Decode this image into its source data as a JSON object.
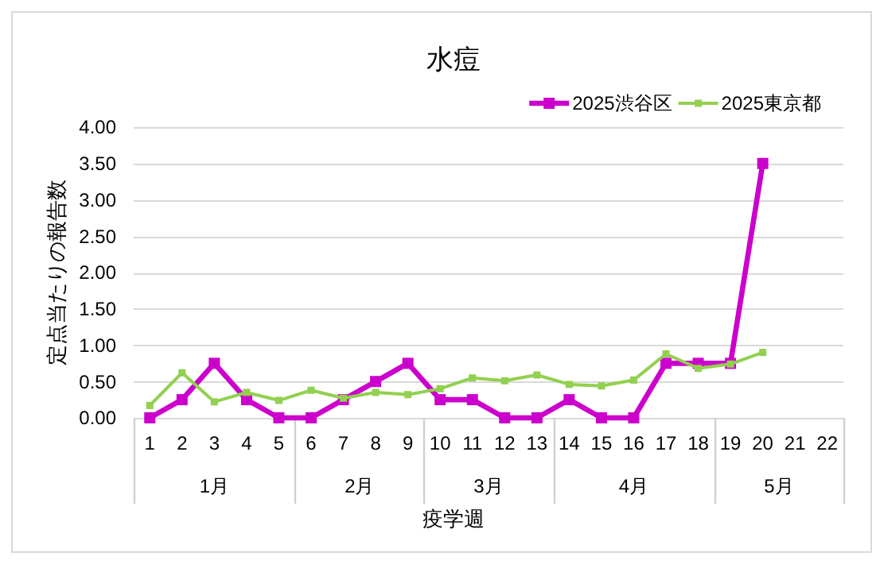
{
  "chart_data": {
    "type": "line",
    "title": "水痘",
    "xlabel": "疫学週",
    "ylabel": "定点当たりの報告数",
    "x": [
      1,
      2,
      3,
      4,
      5,
      6,
      7,
      8,
      9,
      10,
      11,
      12,
      13,
      14,
      15,
      16,
      17,
      18,
      19,
      20
    ],
    "xlim": [
      0.5,
      22.5
    ],
    "xticks": [
      {
        "value": 0.5,
        "label": null
      },
      1,
      2,
      3,
      4,
      5,
      {
        "value": 5.5,
        "label": null
      },
      6,
      7,
      8,
      9,
      {
        "value": 9.5,
        "label": null
      },
      10,
      11,
      12,
      13,
      {
        "value": 13.5,
        "label": null
      },
      14,
      15,
      16,
      17,
      18,
      {
        "value": 18.5,
        "label": null
      },
      19,
      20,
      21,
      22,
      {
        "value": 22.5,
        "label": null
      }
    ],
    "ylim": [
      0,
      4
    ],
    "yticks": [
      {
        "value": 0,
        "label": "0.00"
      },
      {
        "value": 0.5,
        "label": "0.50"
      },
      {
        "value": 1,
        "label": "1.00"
      },
      {
        "value": 1.5,
        "label": "1.50"
      },
      {
        "value": 2,
        "label": "2.00"
      },
      {
        "value": 2.5,
        "label": "2.50"
      },
      {
        "value": 3,
        "label": "3.00"
      },
      {
        "value": 3.5,
        "label": "3.50"
      },
      {
        "value": 4,
        "label": "4.00"
      }
    ],
    "series": [
      {
        "name": "2025渋谷区",
        "color": "#cc00cc",
        "values": [
          0,
          0.25,
          0.75,
          0.25,
          0,
          0,
          0.25,
          0.5,
          0.75,
          0.25,
          0.25,
          0,
          0,
          0.25,
          0,
          0,
          0.75,
          0.75,
          0.75,
          3.5
        ]
      },
      {
        "name": "2025東京都",
        "color": "#92d050",
        "values": [
          0.17,
          0.62,
          0.22,
          0.35,
          0.24,
          0.38,
          0.27,
          0.35,
          0.32,
          0.4,
          0.55,
          0.51,
          0.59,
          0.46,
          0.44,
          0.52,
          0.88,
          0.68,
          0.74,
          0.9
        ]
      }
    ],
    "annotations": [
      "1月",
      "2月",
      "3月",
      "4月",
      "5月"
    ],
    "grid": "y",
    "legend": "top right",
    "marker": "square",
    "line_style": "solid"
  }
}
